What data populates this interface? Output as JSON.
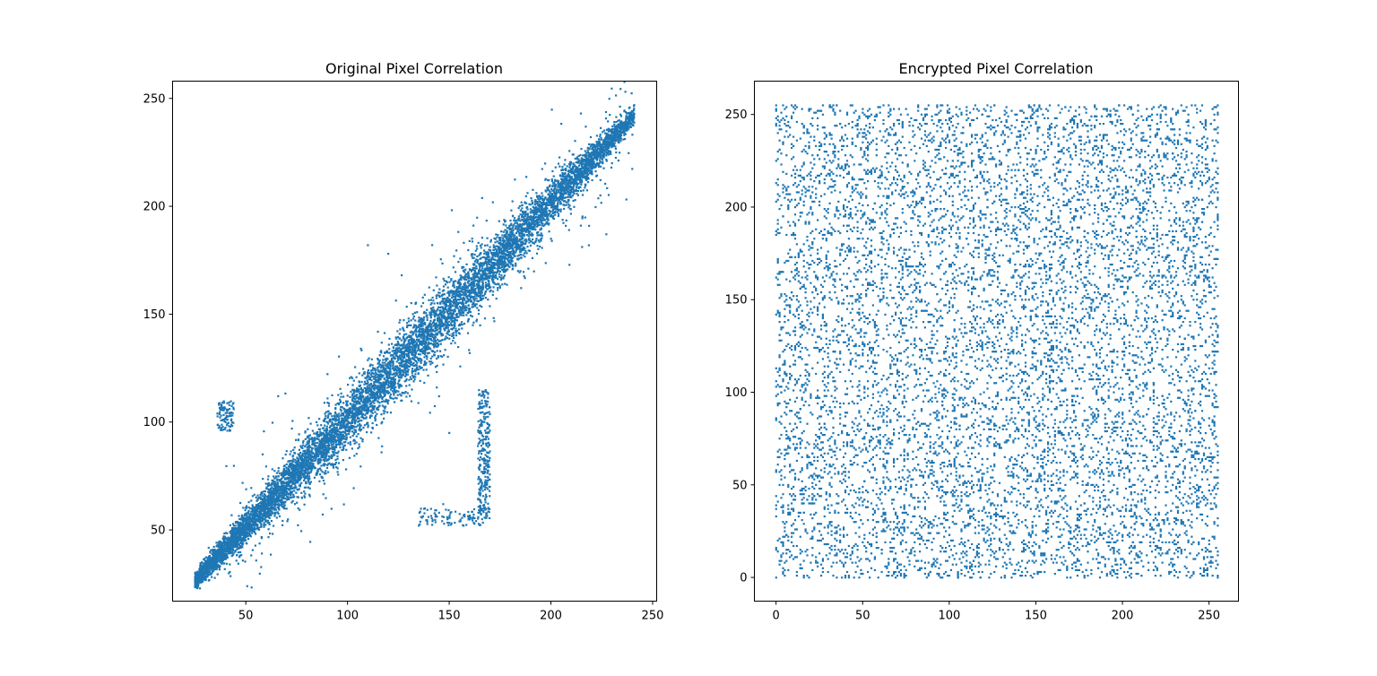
{
  "chart_data": [
    {
      "type": "scatter",
      "title": "Original Pixel Correlation",
      "xlabel": "",
      "ylabel": "",
      "xlim": [
        14,
        252
      ],
      "ylim": [
        17,
        258
      ],
      "xticks": [
        50,
        100,
        150,
        200,
        250
      ],
      "yticks": [
        50,
        100,
        150,
        200,
        250
      ],
      "grid": false,
      "marker_color": "#1f77b4",
      "point_count": 9000,
      "distribution": "dense diagonal band along y = x from about (25, 26) to (241, 240), with an offshoot cluster near x 164-170, y 55-115, a small cluster near (40, 105), and a sparse strip near y 55-60 for x 135-165",
      "series": [
        {
          "x": [
            25,
            30,
            35,
            40,
            50,
            60,
            70,
            80,
            90,
            100,
            110,
            120,
            130,
            140,
            150,
            160,
            170,
            180,
            190,
            200,
            210,
            220,
            230,
            240,
            60,
            160,
            185,
            200,
            215,
            220,
            165,
            166,
            167,
            168,
            169,
            170,
            167,
            168,
            36,
            38,
            40,
            42,
            44,
            138,
            145,
            150,
            155,
            160,
            165,
            157,
            147,
            130,
            120,
            110,
            145,
            150
          ],
          "y": [
            26,
            31,
            36,
            41,
            51,
            62,
            72,
            82,
            93,
            103,
            112,
            123,
            132,
            142,
            152,
            161,
            171,
            181,
            191,
            201,
            211,
            221,
            231,
            240,
            58,
            132,
            170,
            185,
            212,
            225,
            113,
            110,
            100,
            90,
            80,
            70,
            60,
            95,
            104,
            108,
            100,
            96,
            106,
            60,
            58,
            56,
            54,
            55,
            58,
            52,
            62,
            148,
            178,
            182,
            112,
            95
          ]
        }
      ]
    },
    {
      "type": "scatter",
      "title": "Encrypted Pixel Correlation",
      "xlabel": "",
      "ylabel": "",
      "xlim": [
        -12.5,
        267
      ],
      "ylim": [
        -12.8,
        268
      ],
      "xticks": [
        0,
        50,
        100,
        150,
        200,
        250
      ],
      "yticks": [
        0,
        50,
        100,
        150,
        200,
        250
      ],
      "grid": false,
      "marker_color": "#1f77b4",
      "point_count": 9000,
      "distribution": "uniform random fill over the square 0-255 by 0-255",
      "series": [
        {
          "x": [
            0,
            255,
            0,
            255,
            128,
            64,
            192,
            32,
            96,
            160,
            224,
            16,
            48,
            80,
            112,
            144,
            176,
            208,
            240,
            8,
            72,
            136,
            200,
            250,
            24,
            88,
            152,
            216,
            40,
            104
          ],
          "y": [
            0,
            0,
            255,
            255,
            128,
            192,
            64,
            224,
            16,
            176,
            96,
            48,
            240,
            112,
            8,
            200,
            32,
            144,
            80,
            160,
            250,
            24,
            232,
            120,
            72,
            184,
            56,
            208,
            136,
            40
          ]
        }
      ]
    }
  ]
}
